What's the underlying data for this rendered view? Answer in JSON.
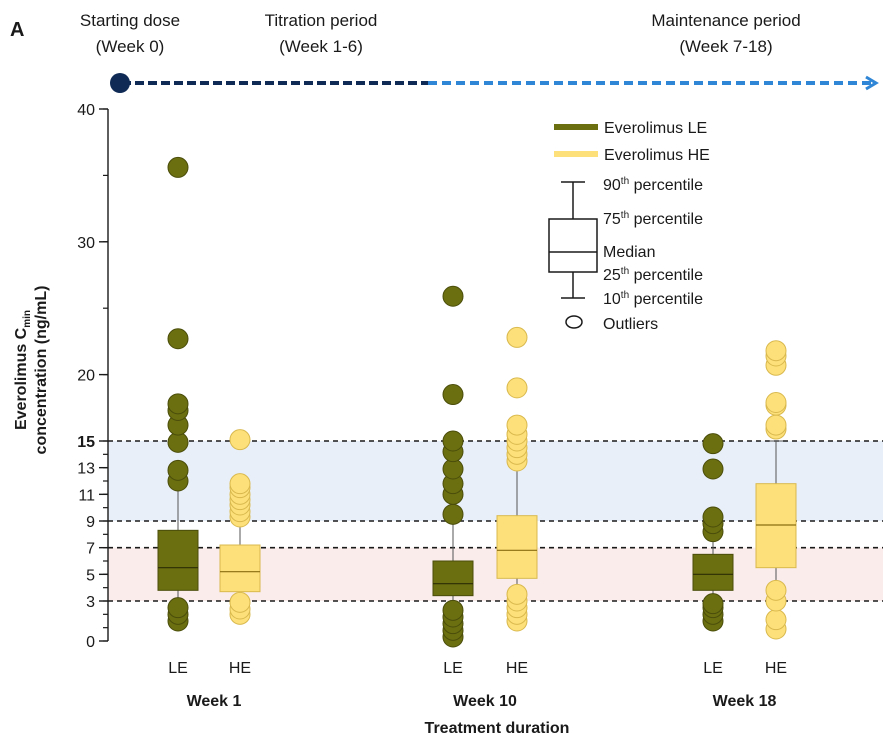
{
  "panel_label": "A",
  "timeline": {
    "starting_dose": [
      "Starting dose",
      "(Week 0)"
    ],
    "titration": [
      "Titration period",
      "(Week 1-6)"
    ],
    "maintenance": [
      "Maintenance period",
      "(Week 7-18)"
    ]
  },
  "legend": {
    "le": "Everolimus LE",
    "he": "Everolimus HE",
    "p90": "90",
    "p90_suffix": "th",
    "p90_rest": " percentile",
    "p75": "75",
    "p75_suffix": "th",
    "p75_rest": " percentile",
    "median": "Median",
    "p25": "25",
    "p25_suffix": "th",
    "p25_rest": " percentile",
    "p10": "10",
    "p10_suffix": "th",
    "p10_rest": " percentile",
    "outliers": "Outliers"
  },
  "colors": {
    "le": "#6b6f10",
    "he": "#fde07a",
    "upper_band": "#e9eff9",
    "lower_band": "#f9ecea",
    "timeline_dark": "#0e2a55",
    "timeline_light": "#2f86d6"
  },
  "chart_data": {
    "type": "box",
    "ylabel_line1": "Everolimus C",
    "ylabel_sub": "min",
    "ylabel_line2": "concentration (ng/mL)",
    "xlabel": "Treatment duration",
    "ylim": [
      0,
      40
    ],
    "yticks": [
      0,
      3,
      5,
      7,
      9,
      11,
      13,
      15,
      20,
      30,
      40
    ],
    "bold_ticks": [
      15
    ],
    "reference_lines": [
      3,
      7,
      9,
      15
    ],
    "bands": [
      {
        "from": 9,
        "to": 15,
        "color": "upper"
      },
      {
        "from": 3,
        "to": 7,
        "color": "lower"
      }
    ],
    "groups": [
      {
        "label": "Week 1",
        "boxes": [
          {
            "name": "LE",
            "p10": 2.7,
            "p25": 3.8,
            "median": 5.5,
            "p75": 8.3,
            "p90": 11.8,
            "outliers": [
              1.5,
              2.0,
              2.5,
              12.0,
              12.8,
              14.9,
              16.2,
              17.3,
              17.8,
              22.7,
              35.6
            ]
          },
          {
            "name": "HE",
            "p10": 2.8,
            "p25": 3.7,
            "median": 5.2,
            "p75": 7.2,
            "p90": 9.0,
            "outliers": [
              2.0,
              2.4,
              2.9,
              9.3,
              9.7,
              10.2,
              10.6,
              11.0,
              11.5,
              11.8,
              15.1
            ]
          }
        ]
      },
      {
        "label": "Week 10",
        "boxes": [
          {
            "name": "LE",
            "p10": 2.3,
            "p25": 3.4,
            "median": 4.3,
            "p75": 6.0,
            "p90": 9.5,
            "outliers": [
              0.3,
              0.8,
              1.3,
              1.8,
              2.3,
              9.5,
              11.0,
              11.8,
              12.9,
              14.2,
              15.0,
              18.5,
              25.9
            ]
          },
          {
            "name": "HE",
            "p10": 3.5,
            "p25": 4.7,
            "median": 6.8,
            "p75": 9.4,
            "p90": 13.3,
            "outliers": [
              1.5,
              2.0,
              2.5,
              3.0,
              3.5,
              13.5,
              14.0,
              14.5,
              15.0,
              15.5,
              16.2,
              19.0,
              22.8
            ]
          }
        ]
      },
      {
        "label": "Week 18",
        "boxes": [
          {
            "name": "LE",
            "p10": 2.8,
            "p25": 3.8,
            "median": 5.0,
            "p75": 6.5,
            "p90": 8.8,
            "outliers": [
              1.5,
              2.0,
              2.5,
              2.8,
              8.2,
              8.8,
              9.3,
              12.9,
              14.8
            ]
          },
          {
            "name": "HE",
            "p10": 4.0,
            "p25": 5.5,
            "median": 8.7,
            "p75": 11.8,
            "p90": 15.0,
            "outliers": [
              0.9,
              1.6,
              3.0,
              3.8,
              15.9,
              16.2,
              17.7,
              17.9,
              20.7,
              21.4,
              21.8
            ]
          }
        ]
      }
    ]
  }
}
